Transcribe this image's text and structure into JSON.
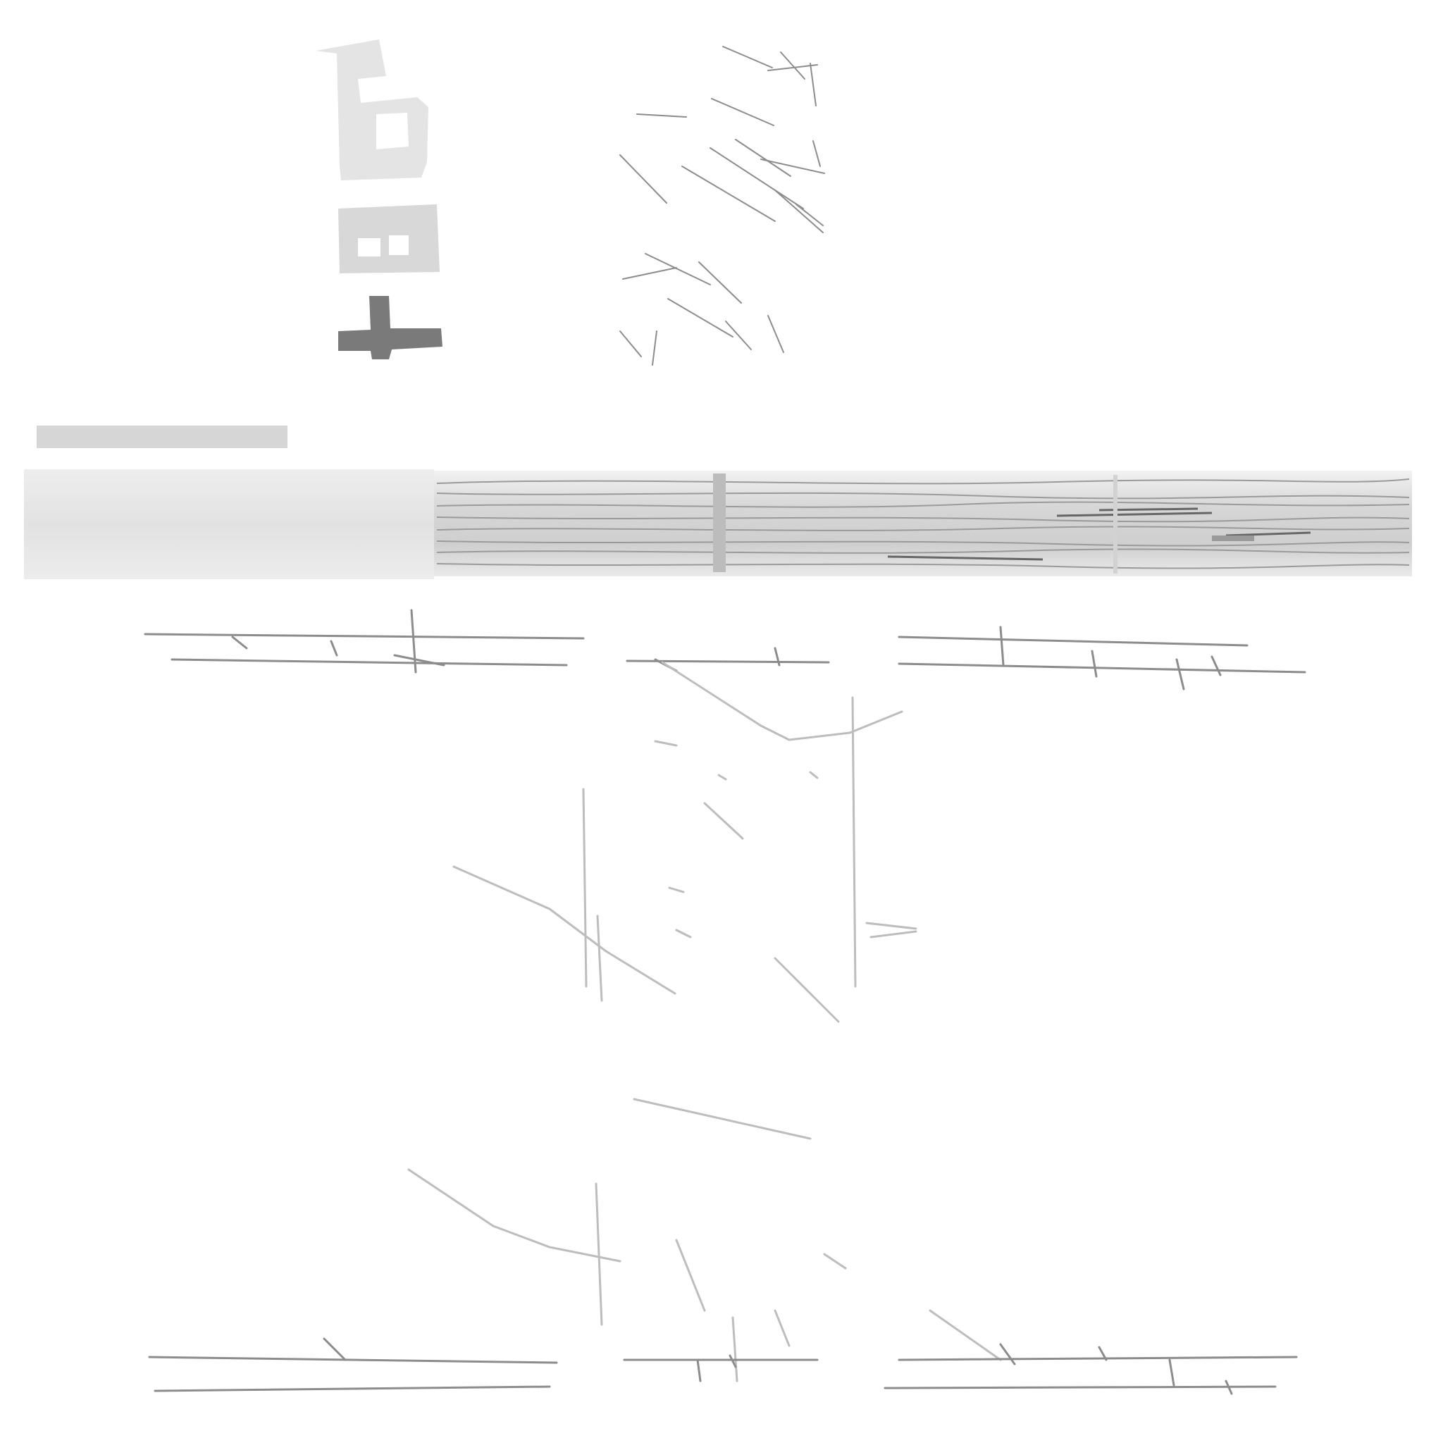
{
  "texture_sheet": {
    "kind": "grayscale texture atlas",
    "background_color": "#ffffff",
    "colors": {
      "light_block": "#e4e4e4",
      "mid_block": "#d8d8d8",
      "dark_block": "#7a7a7a",
      "plank_base": "#e6e6e6",
      "plank_grain": "#9a9a9a",
      "stroke": "#8c8c8c",
      "faint_stroke": "#bdbdbd"
    },
    "pieces": [
      "b-shaped-block",
      "window-block",
      "t-shaped-block",
      "scratch-patch",
      "thin-bar",
      "plain-plank",
      "grain-plank",
      "top-crack-strips",
      "scattered-cracks",
      "bottom-crack-strips"
    ]
  }
}
